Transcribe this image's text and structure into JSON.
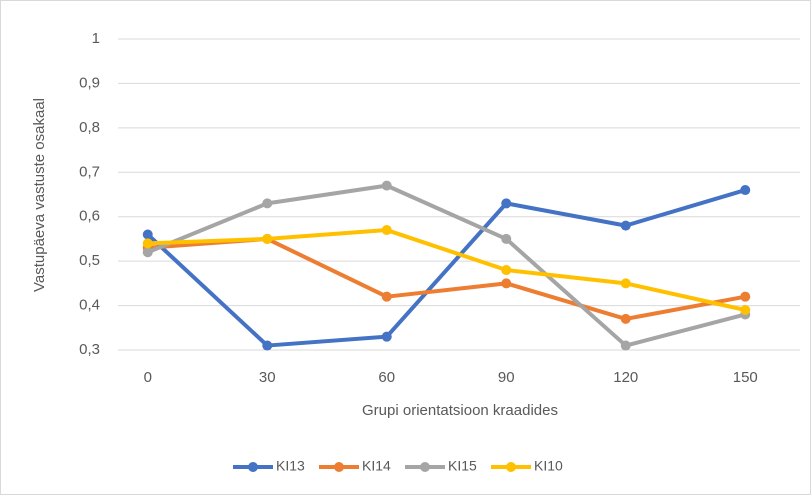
{
  "chart_data": {
    "type": "line",
    "x_label": "Grupi orientatsioon kraadides",
    "y_label": "Vastupäeva vastuste osakaal",
    "categories": [
      "0",
      "30",
      "60",
      "90",
      "120",
      "150"
    ],
    "series": [
      {
        "name": "KI13",
        "color": "#4472c4",
        "values": [
          0.56,
          0.31,
          0.33,
          0.63,
          0.58,
          0.66
        ]
      },
      {
        "name": "KI14",
        "color": "#ed7d31",
        "values": [
          0.53,
          0.55,
          0.42,
          0.45,
          0.37,
          0.42
        ]
      },
      {
        "name": "KI15",
        "color": "#a5a5a5",
        "values": [
          0.52,
          0.63,
          0.67,
          0.55,
          0.31,
          0.38
        ]
      },
      {
        "name": "KI10",
        "color": "#ffc000",
        "values": [
          0.54,
          0.55,
          0.57,
          0.48,
          0.45,
          0.39
        ]
      }
    ],
    "ylim": [
      0.3,
      1
    ],
    "yticks": [
      {
        "value": 0.3,
        "label": "0,3"
      },
      {
        "value": 0.4,
        "label": "0,4"
      },
      {
        "value": 0.5,
        "label": "0,5"
      },
      {
        "value": 0.6,
        "label": "0,6"
      },
      {
        "value": 0.7,
        "label": "0,7"
      },
      {
        "value": 0.8,
        "label": "0,8"
      },
      {
        "value": 0.9,
        "label": "0,9"
      },
      1
    ],
    "grid": true,
    "legend": "bottom"
  }
}
